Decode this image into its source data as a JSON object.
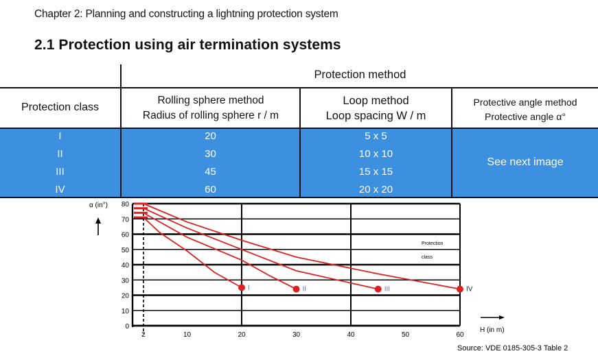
{
  "chapter_title": "Chapter 2: Planning and constructing a lightning protection system",
  "section_title": "2.1 Protection using air termination systems",
  "table": {
    "group_header": "Protection method",
    "col_class": "Protection class",
    "col_rolling_1": "Rolling sphere method",
    "col_rolling_2": "Radius of rolling sphere r / m",
    "col_loop_1": "Loop method",
    "col_loop_2": "Loop spacing W / m",
    "col_angle_1": "Protective angle method",
    "col_angle_2": "Protective angle α°",
    "rows": [
      {
        "cls": "I",
        "radius": "20",
        "loop": "5 x 5"
      },
      {
        "cls": "II",
        "radius": "30",
        "loop": "10 x 10"
      },
      {
        "cls": "III",
        "radius": "45",
        "loop": "15 x 15"
      },
      {
        "cls": "IV",
        "radius": "60",
        "loop": "20 x 20"
      }
    ],
    "angle_note": "See next image",
    "band_color": "#3d8fe0"
  },
  "chart_data": {
    "type": "line",
    "ylabel": "α (in°)",
    "xlabel": "H (in m)",
    "x_ticks": [
      "2",
      "10",
      "20",
      "30",
      "40",
      "50",
      "60"
    ],
    "y_ticks": [
      "0",
      "10",
      "20",
      "30",
      "40",
      "50",
      "60",
      "70",
      "80"
    ],
    "xlim": [
      0,
      60
    ],
    "ylim": [
      0,
      80
    ],
    "legend_title_1": "Protection",
    "legend_title_2": "class",
    "series": [
      {
        "name": "I",
        "points": [
          [
            2,
            71
          ],
          [
            5,
            61
          ],
          [
            10,
            49
          ],
          [
            15,
            35
          ],
          [
            20,
            25
          ]
        ]
      },
      {
        "name": "II",
        "points": [
          [
            2,
            74
          ],
          [
            10,
            58
          ],
          [
            20,
            43
          ],
          [
            25,
            33
          ],
          [
            30,
            24
          ]
        ]
      },
      {
        "name": "III",
        "points": [
          [
            2,
            77
          ],
          [
            10,
            64
          ],
          [
            20,
            50
          ],
          [
            30,
            36
          ],
          [
            45,
            24
          ]
        ]
      },
      {
        "name": "IV",
        "points": [
          [
            2,
            80
          ],
          [
            10,
            68
          ],
          [
            20,
            56
          ],
          [
            30,
            45
          ],
          [
            45,
            34
          ],
          [
            60,
            24
          ]
        ]
      }
    ],
    "line_color": "#e02020"
  },
  "source": "Source: VDE 0185-305-3 Table 2"
}
